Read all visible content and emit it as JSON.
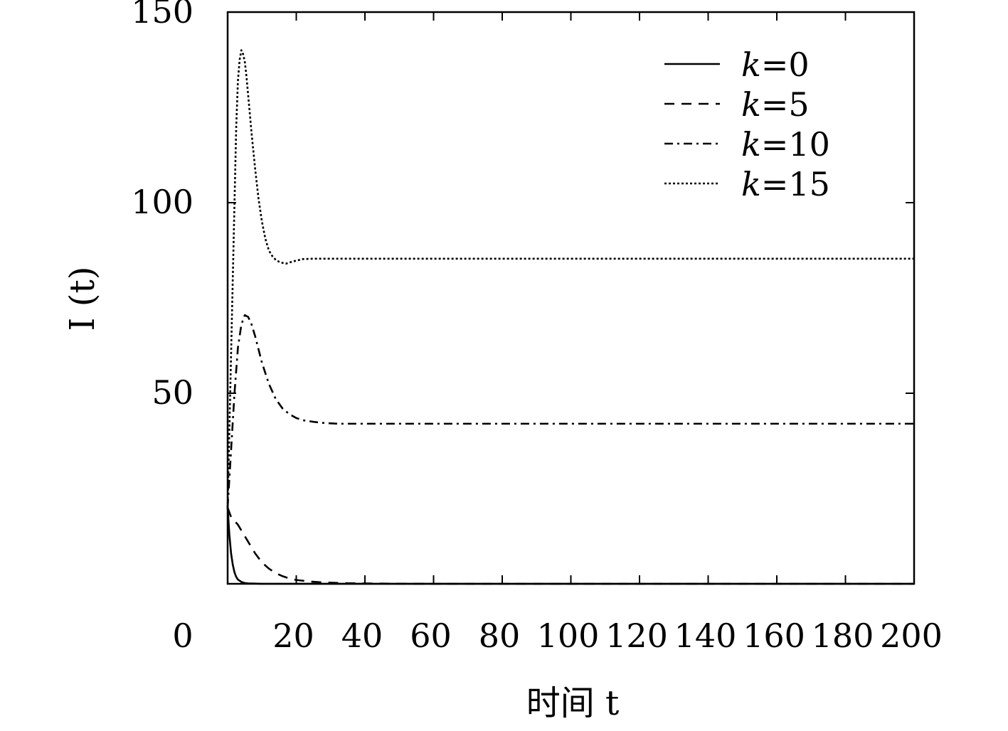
{
  "chart_data": {
    "type": "line",
    "xlabel": "时间 t",
    "ylabel": "I (t)",
    "xlim": [
      0,
      200
    ],
    "ylim": [
      0,
      150
    ],
    "x_ticks": [
      0,
      20,
      40,
      60,
      80,
      100,
      120,
      140,
      160,
      180,
      200
    ],
    "y_ticks": [
      50,
      100,
      150
    ],
    "x_tick_labels": [
      "0",
      "20",
      "40",
      "60",
      "80",
      "100",
      "120",
      "140",
      "160",
      "180",
      "200"
    ],
    "y_tick_labels": [
      "50",
      "100",
      "150"
    ],
    "grid": false,
    "legend_position": "top-right",
    "series": [
      {
        "name": "k=0",
        "dash": "solid",
        "x": [
          0,
          0.5,
          1,
          1.5,
          2,
          2.5,
          3,
          4,
          5,
          6,
          8,
          10,
          15,
          20,
          40,
          60,
          100,
          200
        ],
        "y": [
          20,
          13,
          8,
          5,
          3,
          1.8,
          1.1,
          0.5,
          0.2,
          0.1,
          0.05,
          0,
          0,
          0,
          0,
          0,
          0,
          0
        ]
      },
      {
        "name": "k=5",
        "dash": "dash",
        "x": [
          0,
          1,
          2,
          3,
          4,
          5,
          6,
          7,
          8,
          9,
          10,
          12,
          14,
          16,
          18,
          20,
          24,
          28,
          35,
          45,
          60,
          100,
          200
        ],
        "y": [
          20,
          17.5,
          16.5,
          15.5,
          14,
          12.5,
          11,
          9.5,
          8,
          6.8,
          5.6,
          4,
          2.8,
          2,
          1.4,
          1,
          0.6,
          0.35,
          0.15,
          0.05,
          0,
          0,
          0
        ]
      },
      {
        "name": "k=10",
        "dash": "dashdot",
        "x": [
          0,
          1,
          2,
          3,
          4,
          5,
          6,
          7,
          8,
          9,
          10,
          12,
          14,
          16,
          18,
          20,
          22,
          25,
          28,
          32,
          40,
          60,
          100,
          200
        ],
        "y": [
          20,
          35,
          50,
          62,
          68,
          70.5,
          70,
          68,
          65,
          61.5,
          58,
          52.5,
          48.5,
          46,
          44.5,
          43.5,
          42.9,
          42.5,
          42.2,
          42,
          42,
          42,
          42,
          42
        ]
      },
      {
        "name": "k=15",
        "dash": "dot",
        "x": [
          0,
          1,
          2,
          2.5,
          3,
          3.5,
          4,
          4.5,
          5,
          5.5,
          6,
          6.5,
          7,
          8,
          9,
          10,
          11,
          12,
          13,
          14,
          15,
          16,
          17,
          18,
          20,
          22,
          25,
          30,
          40,
          60,
          100,
          200
        ],
        "y": [
          20,
          60,
          100,
          120,
          132,
          137.5,
          140,
          139,
          137,
          133,
          128,
          123,
          118,
          109,
          101,
          95,
          90.5,
          87.5,
          86,
          85,
          84.5,
          84.2,
          84,
          84.3,
          84.8,
          85.2,
          85.3,
          85.3,
          85.3,
          85.3,
          85.3,
          85.3
        ]
      }
    ],
    "legend_entries": [
      {
        "var": "k",
        "value": "=0"
      },
      {
        "var": "k",
        "value": "=5"
      },
      {
        "var": "k",
        "value": "=10"
      },
      {
        "var": "k",
        "value": "=15"
      }
    ]
  }
}
